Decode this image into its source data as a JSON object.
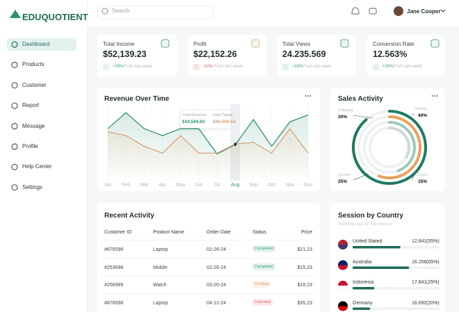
{
  "brand": "EDUQUOTIENT",
  "search_placeholder": "Search",
  "user": "Jane Cooper",
  "nav": [
    "Dashboard",
    "Products",
    "Customer",
    "Report",
    "Message",
    "Profile",
    "Help Center",
    "Settings"
  ],
  "stats": [
    {
      "label": "Total Income",
      "value": "$52,139.23",
      "change": "+25%",
      "note": "From last week",
      "color": "#2f9e6b"
    },
    {
      "label": "Profit",
      "value": "$22,152.26",
      "change": "-10%",
      "note": "From last week",
      "color": "#e05b5b"
    },
    {
      "label": "Total Views",
      "value": "24.235.569",
      "change": "+15%",
      "note": "From last week",
      "color": "#2f9e6b"
    },
    {
      "label": "Conversion Rate",
      "value": "12.563%",
      "change": "+20%",
      "note": "From last week",
      "color": "#2f9e6b"
    }
  ],
  "revenue_chart": {
    "type": "line",
    "title": "Revenue Over Time",
    "categories": [
      "Jan",
      "Feb",
      "Mar",
      "Apr",
      "May",
      "Jun",
      "Jul",
      "Aug",
      "Sep",
      "Oct",
      "Nov",
      "Dec"
    ],
    "ylim": [
      0,
      100
    ],
    "highlight": 7,
    "series": [
      {
        "name": "Total Revenue",
        "color": "#2f8f75",
        "value_label": "$34,569.63",
        "values": [
          68,
          89,
          68,
          59,
          68,
          68,
          35,
          47,
          80,
          45,
          77,
          86
        ]
      },
      {
        "name": "Total Target",
        "color": "#d9a27a",
        "value_label": "$44,569.63",
        "values": [
          64,
          59,
          45,
          36,
          59,
          36,
          36,
          48,
          50,
          36,
          68,
          36
        ]
      }
    ]
  },
  "sales_activity": {
    "type": "radial",
    "title": "Sales Activity",
    "segments": [
      {
        "name": "Shipping",
        "value": 20,
        "value_label": "20%",
        "color": "#9fc9bd"
      },
      {
        "name": "Income",
        "value": 40,
        "value_label": "40%",
        "color": "#1e7a63"
      },
      {
        "name": "Lesson",
        "value": 25,
        "value_label": "25%",
        "color": "#e8a15b"
      },
      {
        "name": "Closed",
        "value": 15,
        "value_label": "15%",
        "color": "#cfd8dc"
      }
    ]
  },
  "recent_activity": {
    "title": "Recent Activity",
    "columns": [
      "Customer ID",
      "Product Name",
      "Order Date",
      "Status",
      "Price"
    ],
    "rows": [
      [
        "#876598",
        "Laptop",
        "02-26-24",
        "Completed",
        "$21,23"
      ],
      [
        "#253698",
        "Mobile",
        "02-26-24",
        "Completed",
        "$15,23"
      ],
      [
        "#256989",
        "Watch",
        "03-20-24",
        "Pending",
        "$18,23"
      ],
      [
        "#876598",
        "Laptop",
        "04-12-24",
        "Canceled",
        "$35,23"
      ]
    ],
    "status_colors": [
      "#2f9e6b",
      "#2f9e6b",
      "#e8a15b",
      "#e05b5b"
    ]
  },
  "session_by_country": {
    "title": "Session by Country",
    "subtitle": "Showing data for top session",
    "rows": [
      {
        "country": "United Stated",
        "sessions": "12.841",
        "percent": 55,
        "percent_label": "(55%)"
      },
      {
        "country": "Australia",
        "sessions": "16.256",
        "percent": 65,
        "percent_label": "(65%)"
      },
      {
        "country": "Indonesia",
        "sessions": "17.841",
        "percent": 25,
        "percent_label": "(25%)"
      },
      {
        "country": "Germany",
        "sessions": "16.692",
        "percent": 20,
        "percent_label": "(20%)"
      }
    ]
  }
}
